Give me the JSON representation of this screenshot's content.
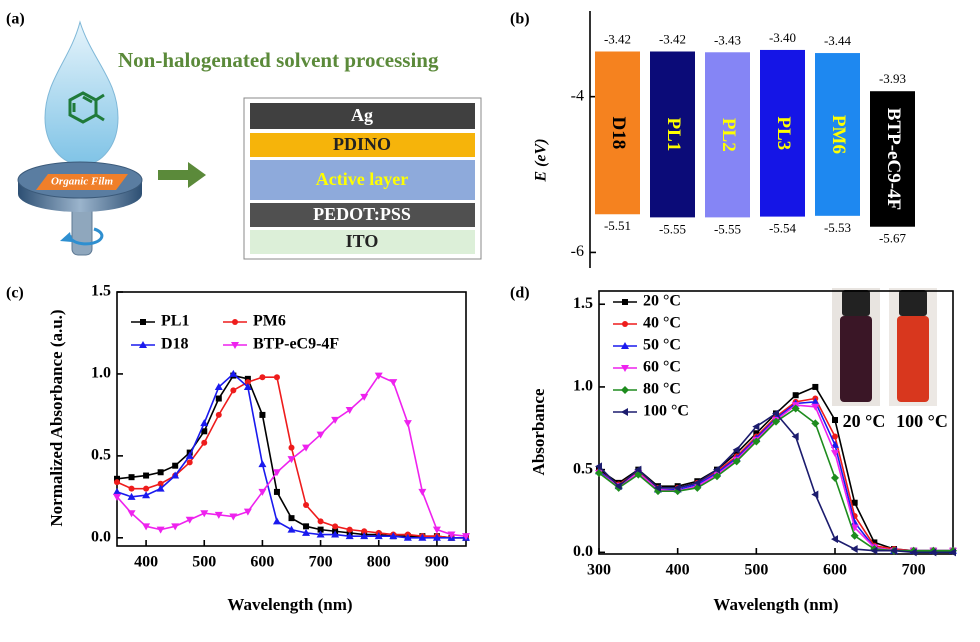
{
  "diagram": {
    "panel": "(a)",
    "heading": "Non-halogenated solvent processing",
    "film_label": "Organic Film",
    "layers": [
      "Ag",
      "PDINO",
      "Active layer",
      "PEDOT:PSS",
      "ITO"
    ]
  },
  "chart_data": [
    {
      "type": "floating_bar",
      "panel": "(b)",
      "ylabel": "E (eV)",
      "categories": [
        "D18",
        "PL1",
        "PL2",
        "PL3",
        "PM6",
        "BTP-eC9-4F"
      ],
      "colors": [
        "#f5821f",
        "#0b0b78",
        "#8585f5",
        "#1515e6",
        "#1e88f0",
        "#000000"
      ],
      "label_colors": [
        "#000000",
        "#ffff00",
        "#ffff00",
        "#ffff00",
        "#ffff00",
        "#ffffff"
      ],
      "series": [
        {
          "values": [
            -3.42,
            -3.42,
            -3.43,
            -3.4,
            -3.44,
            -3.93
          ],
          "value_labels": [
            "-3.42",
            "-3.42",
            "-3.43",
            "-3.40",
            "-3.44",
            "-3.93"
          ]
        },
        {
          "values": [
            -5.51,
            -5.55,
            -5.55,
            -5.54,
            -5.53,
            -5.67
          ],
          "value_labels": [
            "-5.51",
            "-5.55",
            "-5.55",
            "-5.54",
            "-5.53",
            "-5.67"
          ]
        }
      ],
      "ylim": [
        -6.2,
        -2.9
      ],
      "yticks": [
        -4,
        -6
      ]
    },
    {
      "type": "line",
      "panel": "(c)",
      "xlabel": "Wavelength (nm)",
      "ylabel": "Normalized Absorbance (a.u.)",
      "x": [
        350,
        375,
        400,
        425,
        450,
        475,
        500,
        525,
        550,
        575,
        600,
        625,
        650,
        675,
        700,
        725,
        750,
        775,
        800,
        825,
        850,
        875,
        900,
        925,
        950
      ],
      "xlim": [
        350,
        950
      ],
      "xticks": [
        400,
        500,
        600,
        700,
        800,
        900
      ],
      "ylim": [
        -0.05,
        1.5
      ],
      "yticks": [
        {
          "value": 0,
          "label": "0.0"
        },
        {
          "value": 0.5,
          "label": "0.5"
        },
        {
          "value": 1,
          "label": "1.0"
        },
        {
          "value": 1.5,
          "label": "1.5"
        }
      ],
      "legend_columns": 2,
      "series": [
        {
          "name": "PL1",
          "color": "#000000",
          "marker": "square",
          "values": [
            0.36,
            0.37,
            0.38,
            0.4,
            0.44,
            0.52,
            0.65,
            0.85,
            0.99,
            0.97,
            0.75,
            0.28,
            0.12,
            0.07,
            0.05,
            0.04,
            0.03,
            0.02,
            0.02,
            0.01,
            0.01,
            0.01,
            0.01,
            0.0,
            0.0
          ]
        },
        {
          "name": "PM6",
          "color": "#ee1c1c",
          "marker": "circle",
          "values": [
            0.34,
            0.3,
            0.3,
            0.33,
            0.38,
            0.46,
            0.58,
            0.75,
            0.9,
            0.95,
            0.98,
            0.98,
            0.55,
            0.2,
            0.1,
            0.07,
            0.05,
            0.04,
            0.03,
            0.02,
            0.02,
            0.01,
            0.01,
            0.0,
            0.0
          ]
        },
        {
          "name": "D18",
          "color": "#1a1aee",
          "marker": "triangle-up",
          "values": [
            0.28,
            0.25,
            0.26,
            0.3,
            0.38,
            0.5,
            0.7,
            0.92,
            1.0,
            0.92,
            0.45,
            0.1,
            0.05,
            0.03,
            0.02,
            0.02,
            0.01,
            0.01,
            0.01,
            0.01,
            0.0,
            0.0,
            0.0,
            0.0,
            0.0
          ]
        },
        {
          "name": "BTP-eC9-4F",
          "color": "#ee22ee",
          "marker": "triangle-down",
          "values": [
            0.25,
            0.15,
            0.07,
            0.05,
            0.07,
            0.11,
            0.15,
            0.14,
            0.13,
            0.16,
            0.28,
            0.4,
            0.48,
            0.55,
            0.63,
            0.72,
            0.78,
            0.86,
            0.99,
            0.95,
            0.7,
            0.28,
            0.05,
            0.02,
            0.01
          ]
        }
      ]
    },
    {
      "type": "line",
      "panel": "(d)",
      "xlabel": "Wavelength (nm)",
      "ylabel": "Absorbance",
      "x": [
        300,
        325,
        350,
        375,
        400,
        425,
        450,
        475,
        500,
        525,
        550,
        575,
        600,
        625,
        650,
        675,
        700,
        725,
        750
      ],
      "xlim": [
        300,
        750
      ],
      "xticks": [
        300,
        400,
        500,
        600,
        700
      ],
      "ylim": [
        -0.01,
        1.58
      ],
      "yticks": [
        {
          "value": 0,
          "label": "0.0"
        },
        {
          "value": 0.5,
          "label": "0.5"
        },
        {
          "value": 1,
          "label": "1.0"
        },
        {
          "value": 1.5,
          "label": "1.5"
        }
      ],
      "legend_columns": 1,
      "annotations": [
        "20 °C",
        "100 °C"
      ],
      "series": [
        {
          "name": "20 °C",
          "color": "#000000",
          "marker": "square",
          "values": [
            0.5,
            0.42,
            0.5,
            0.4,
            0.4,
            0.43,
            0.5,
            0.6,
            0.72,
            0.84,
            0.95,
            1.0,
            0.8,
            0.3,
            0.06,
            0.02,
            0.01,
            0.01,
            0.01
          ]
        },
        {
          "name": "40 °C",
          "color": "#ee1c1c",
          "marker": "circle",
          "values": [
            0.49,
            0.41,
            0.49,
            0.39,
            0.39,
            0.42,
            0.49,
            0.58,
            0.7,
            0.82,
            0.91,
            0.93,
            0.7,
            0.22,
            0.04,
            0.02,
            0.01,
            0.01,
            0.01
          ]
        },
        {
          "name": "50 °C",
          "color": "#1a1aee",
          "marker": "triangle-up",
          "values": [
            0.49,
            0.4,
            0.48,
            0.38,
            0.38,
            0.41,
            0.48,
            0.57,
            0.69,
            0.81,
            0.9,
            0.91,
            0.65,
            0.18,
            0.03,
            0.01,
            0.01,
            0.01,
            0.01
          ]
        },
        {
          "name": "60 °C",
          "color": "#ee22ee",
          "marker": "triangle-down",
          "values": [
            0.48,
            0.4,
            0.48,
            0.38,
            0.37,
            0.4,
            0.47,
            0.56,
            0.68,
            0.8,
            0.89,
            0.88,
            0.6,
            0.15,
            0.03,
            0.01,
            0.01,
            0.01,
            0.01
          ]
        },
        {
          "name": "80 °C",
          "color": "#1e8c1e",
          "marker": "diamond",
          "values": [
            0.48,
            0.39,
            0.47,
            0.37,
            0.37,
            0.39,
            0.46,
            0.55,
            0.67,
            0.79,
            0.87,
            0.78,
            0.45,
            0.1,
            0.02,
            0.01,
            0.01,
            0.01,
            0.01
          ]
        },
        {
          "name": "100 °C",
          "color": "#1c1c6e",
          "marker": "triangle-left",
          "values": [
            0.52,
            0.4,
            0.5,
            0.39,
            0.39,
            0.42,
            0.5,
            0.62,
            0.76,
            0.84,
            0.7,
            0.35,
            0.08,
            0.02,
            0.01,
            0.01,
            0.0,
            0.0,
            0.0
          ]
        }
      ]
    }
  ]
}
